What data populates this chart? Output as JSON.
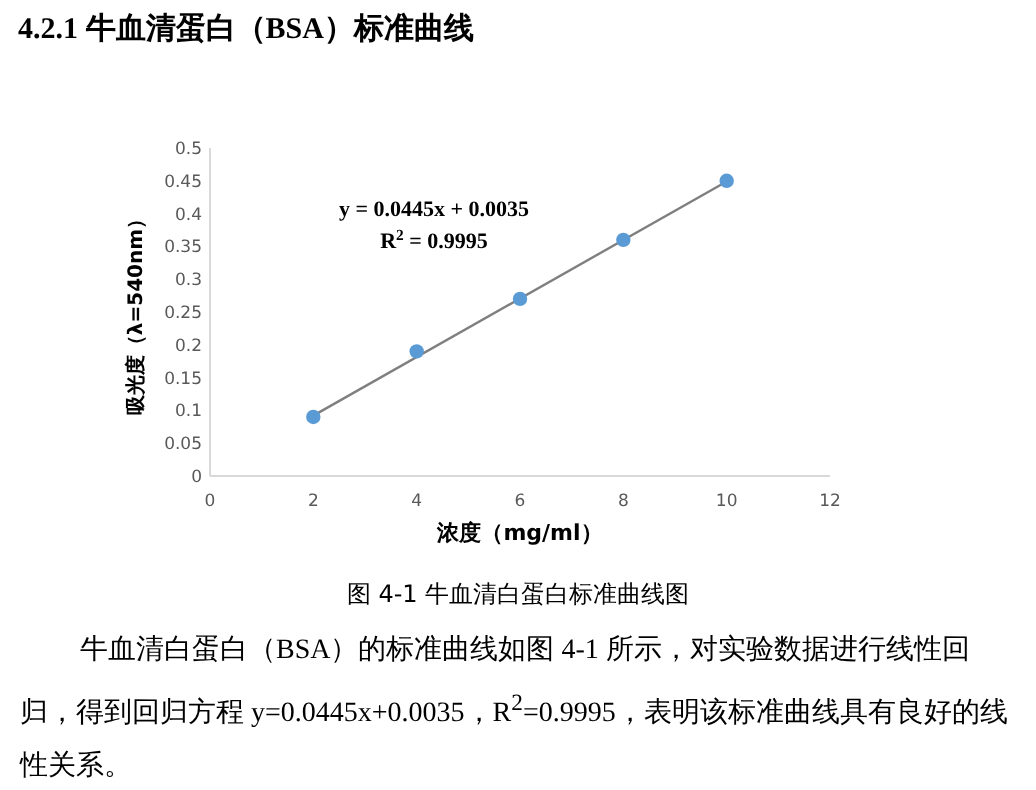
{
  "chart_data": {
    "type": "scatter",
    "title": "4.2.1 牛血清蛋白（BSA）标准曲线",
    "xlabel": "浓度（mg/ml）",
    "ylabel": "吸光度（λ=540nm）",
    "xlim": [
      0,
      12
    ],
    "xticks": [
      0,
      2,
      4,
      6,
      8,
      10,
      12
    ],
    "ylim": [
      0,
      0.5
    ],
    "yticks": [
      0,
      0.05,
      0.1,
      0.15,
      0.2,
      0.25,
      0.3,
      0.35,
      0.4,
      0.45,
      0.5
    ],
    "grid": false,
    "legend": false,
    "marker": "circle",
    "series": [
      {
        "type": "scatter",
        "color": "#5b9bd5",
        "x": [
          2,
          4,
          6,
          8,
          10
        ],
        "values": [
          0.09,
          0.19,
          0.27,
          0.36,
          0.45
        ]
      },
      {
        "type": "line",
        "color": "#7f7f7f",
        "marker": "none",
        "x": [
          2,
          10
        ],
        "values": [
          0.092,
          0.449
        ]
      }
    ],
    "annotations": [
      "y = 0.0445x + 0.0035",
      "R$^{2}$ = 0.9995",
      "图 4-1  牛血清白蛋白标准曲线图",
      "牛血清白蛋白（BSA）的标准曲线如图 4-1 所示，对实验数据进行线性回归，得到回归方程 y=0.0445x+0.0035，R$^{2}$=0.9995，表明该标准曲线具有良好的线性关系。"
    ]
  }
}
